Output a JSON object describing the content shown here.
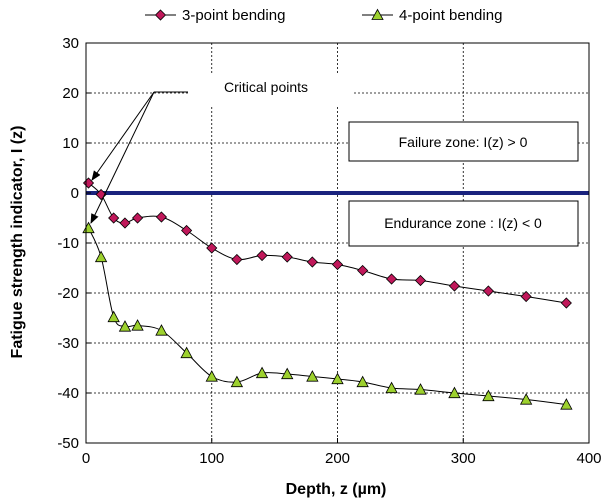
{
  "chart_data": {
    "type": "line",
    "xlabel": "Depth, z (µm)",
    "ylabel": "Fatigue strength indicator, I (z)",
    "xlim": [
      0,
      400
    ],
    "ylim": [
      -50,
      30
    ],
    "xticks": [
      "0",
      "100",
      "200",
      "300",
      "400"
    ],
    "yticks": [
      "30",
      "20",
      "10",
      "0",
      "-10",
      "-20",
      "-30",
      "-40",
      "-50"
    ],
    "grid": true,
    "legend_position": "top",
    "series": [
      {
        "name": "3-point bending",
        "marker": "diamond",
        "color": "#c0185a",
        "x": [
          2,
          12,
          22,
          31,
          41,
          60,
          80,
          100,
          120,
          140,
          160,
          180,
          200,
          220,
          243,
          266,
          293,
          320,
          350,
          382
        ],
        "y": [
          2,
          -0.3,
          -5,
          -6,
          -5,
          -4.8,
          -7.5,
          -11,
          -13.3,
          -12.5,
          -12.8,
          -13.8,
          -14.3,
          -15.5,
          -17.2,
          -17.5,
          -18.6,
          -19.6,
          -20.7,
          -22
        ]
      },
      {
        "name": "4-point bending",
        "marker": "triangle",
        "color": "#9dd12e",
        "x": [
          2,
          12,
          22,
          31,
          41,
          60,
          80,
          100,
          120,
          140,
          160,
          180,
          200,
          220,
          243,
          266,
          293,
          320,
          350,
          382
        ],
        "y": [
          -7,
          -12.8,
          -24.8,
          -26.7,
          -26.5,
          -27.5,
          -32,
          -36.7,
          -37.8,
          -36,
          -36.2,
          -36.7,
          -37.2,
          -37.8,
          -39,
          -39.3,
          -40,
          -40.6,
          -41.3,
          -42.3
        ]
      }
    ],
    "threshold_line": {
      "y": 0,
      "color": "#1a237e"
    },
    "annotations": {
      "critical_points": "Critical points",
      "failure_zone": "Failure zone: I(z) > 0",
      "endurance_zone": "Endurance zone : I(z) < 0"
    }
  }
}
